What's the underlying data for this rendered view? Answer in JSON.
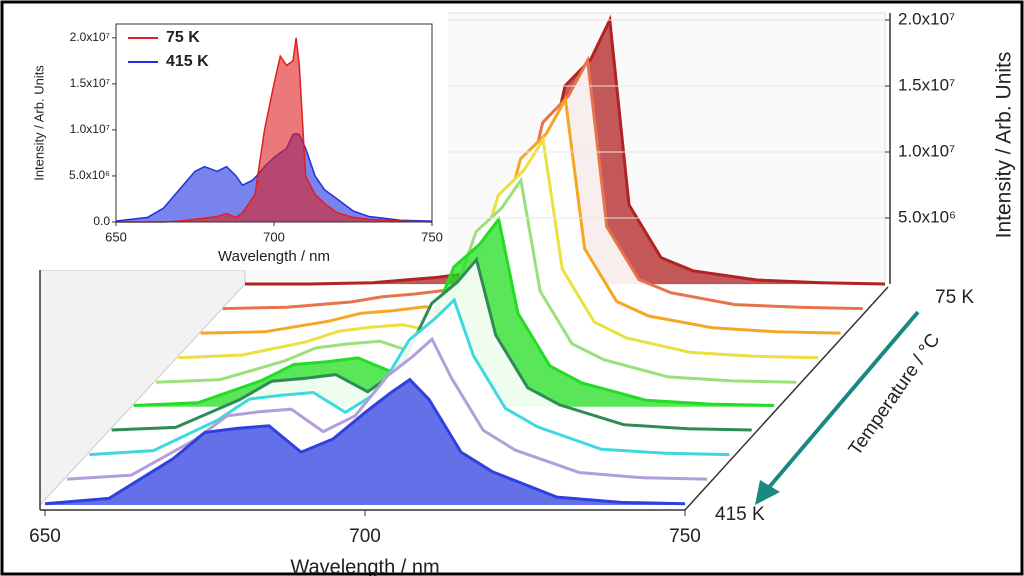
{
  "chart_data": [
    {
      "type": "area",
      "xlabel": "Wavelength / nm",
      "ylabel": "Intensity / Arb. Units",
      "x": [
        650,
        655,
        660,
        665,
        670,
        675,
        678,
        682,
        685,
        688,
        690,
        693,
        694,
        697,
        700,
        702,
        704,
        706,
        707,
        708,
        710,
        713,
        716,
        720,
        725,
        730,
        740,
        750
      ],
      "series": [
        {
          "name": "75 K",
          "color": "#e02020",
          "values": [
            0,
            0,
            0,
            0,
            100000.0,
            300000.0,
            400000.0,
            600000.0,
            900000.0,
            500000.0,
            1000000.0,
            2500000.0,
            3000000.0,
            10000000.0,
            15000000.0,
            18000000.0,
            17000000.0,
            17500000.0,
            20000000.0,
            17000000.0,
            5000000.0,
            3000000.0,
            2000000.0,
            1000000.0,
            500000.0,
            300000.0,
            100000.0,
            0
          ]
        },
        {
          "name": "415 K",
          "color": "#2030e0",
          "values": [
            100000.0,
            300000.0,
            500000.0,
            1500000.0,
            3500000.0,
            5500000.0,
            6000000.0,
            5500000.0,
            6000000.0,
            5000000.0,
            4000000.0,
            4500000.0,
            4800000.0,
            6000000.0,
            7000000.0,
            7500000.0,
            8000000.0,
            9500000.0,
            9600000.0,
            9500000.0,
            8000000.0,
            5000000.0,
            3500000.0,
            2500000.0,
            1200000.0,
            600000.0,
            200000.0,
            100000.0
          ]
        }
      ],
      "xlim": [
        650,
        750
      ],
      "ylim": [
        0,
        21500000.0
      ],
      "xticks": [
        650,
        700,
        750
      ],
      "yticks": [
        {
          "value": 0,
          "label": "0.0"
        },
        {
          "value": 5000000,
          "label": "5.0x10⁶"
        },
        {
          "value": 10000000,
          "label": "1.0x10⁷"
        },
        {
          "value": 15000000,
          "label": "1.5x10⁷"
        },
        {
          "value": 20000000,
          "label": "2.0x10⁷"
        }
      ],
      "legend": "upper left"
    },
    {
      "type": "waterfall",
      "xlabel": "Wavelength / nm",
      "ylabel": "Intensity / Arb. Units",
      "zlabel": "Temperature / °C",
      "zlabels": [
        "75 K",
        "415 K"
      ],
      "x": [
        650,
        660,
        670,
        675,
        680,
        685,
        690,
        695,
        700,
        704,
        707,
        710,
        715,
        720,
        730,
        740,
        750
      ],
      "series": [
        {
          "color": "#b22222",
          "fill": true,
          "values": [
            0,
            0,
            100000.0,
            300000.0,
            500000.0,
            800000.0,
            1000000.0,
            4000000.0,
            15000000.0,
            17000000.0,
            20000000.0,
            6000000.0,
            2000000.0,
            1000000.0,
            300000.0,
            100000.0,
            0
          ]
        },
        {
          "color": "#e8734a",
          "values": [
            0,
            100000.0,
            500000.0,
            900000.0,
            1100000.0,
            1400000.0,
            1300000.0,
            4100000.0,
            14100000.0,
            16100000.0,
            18800000.0,
            6200000.0,
            2200000.0,
            1200000.0,
            300000.0,
            100000.0,
            0
          ]
        },
        {
          "color": "#f5a623",
          "values": [
            0,
            100000.0,
            900000.0,
            1500000.0,
            1700000.0,
            2000000.0,
            1700000.0,
            4200000.0,
            13200000.0,
            15100000.0,
            17700000.0,
            6400000.0,
            2400000.0,
            1300000.0,
            400000.0,
            100000.0,
            0
          ]
        },
        {
          "color": "#ece040",
          "values": [
            0,
            200000.0,
            1200000.0,
            2000000.0,
            2300000.0,
            2500000.0,
            2000000.0,
            4300000.0,
            12300000.0,
            14200000.0,
            16500000.0,
            6700000.0,
            2700000.0,
            1500000.0,
            400000.0,
            100000.0,
            0
          ]
        },
        {
          "color": "#9be07a",
          "values": [
            0,
            200000.0,
            1600000.0,
            2600000.0,
            2900000.0,
            3100000.0,
            2300000.0,
            4400000.0,
            11400000.0,
            13200000.0,
            15300000.0,
            6900000.0,
            2900000.0,
            1700000.0,
            400000.0,
            100000.0,
            0
          ]
        },
        {
          "color": "#22dd22",
          "fill": true,
          "values": [
            100000.0,
            300000.0,
            2000000.0,
            3200000.0,
            3400000.0,
            3700000.0,
            2700000.0,
            4600000.0,
            10600000.0,
            12300000.0,
            14200000.0,
            7100000.0,
            3100000.0,
            1800000.0,
            500000.0,
            200000.0,
            100000.0
          ]
        },
        {
          "color": "#2e8b57",
          "values": [
            100000.0,
            300000.0,
            2400000.0,
            3800000.0,
            4000000.0,
            4300000.0,
            3000000.0,
            4700000.0,
            9700000.0,
            11300000.0,
            13000000.0,
            7300000.0,
            3300000.0,
            2000000.0,
            500000.0,
            200000.0,
            100000.0
          ]
        },
        {
          "color": "#40d8e0",
          "values": [
            100000.0,
            400000.0,
            2700000.0,
            4300000.0,
            4600000.0,
            4800000.0,
            3300000.0,
            4800000.0,
            8800000.0,
            10400000.0,
            11800000.0,
            7600000.0,
            3600000.0,
            2200000.0,
            500000.0,
            200000.0,
            100000.0
          ]
        },
        {
          "color": "#b39ddb",
          "values": [
            100000.0,
            400000.0,
            3100000.0,
            4900000.0,
            5200000.0,
            5400000.0,
            3700000.0,
            4900000.0,
            7900000.0,
            9400000.0,
            10700000.0,
            7800000.0,
            3800000.0,
            2300000.0,
            600000.0,
            200000.0,
            100000.0
          ]
        },
        {
          "color": "#3040e0",
          "fill": true,
          "values": [
            100000.0,
            500000.0,
            3500000.0,
            5500000.0,
            5800000.0,
            6000000.0,
            4000000.0,
            5000000.0,
            7000000.0,
            8500000.0,
            9500000.0,
            8000000.0,
            4000000.0,
            2500000.0,
            600000.0,
            200000.0,
            100000.0
          ]
        }
      ],
      "xlim": [
        650,
        750
      ],
      "ylim": [
        0,
        20500000.0
      ],
      "xticks": [
        650,
        700,
        750
      ],
      "yticks": [
        {
          "value": 5000000,
          "label": "5.0x10⁶"
        },
        {
          "value": 10000000,
          "label": "1.0x10⁷"
        },
        {
          "value": 15000000,
          "label": "1.5x10⁷"
        },
        {
          "value": 20000000,
          "label": "2.0x10⁷"
        }
      ]
    }
  ]
}
